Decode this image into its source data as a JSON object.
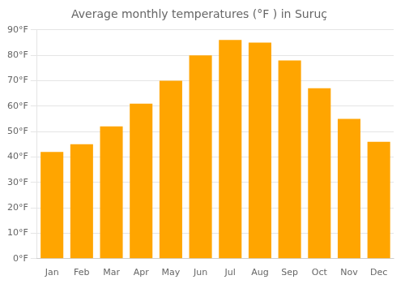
{
  "chart_data": {
    "type": "bar",
    "title": "Average monthly temperatures (°F ) in Suruç",
    "categories": [
      "Jan",
      "Feb",
      "Mar",
      "Apr",
      "May",
      "Jun",
      "Jul",
      "Aug",
      "Sep",
      "Oct",
      "Nov",
      "Dec"
    ],
    "values": [
      42,
      45,
      52,
      61,
      70,
      80,
      86,
      85,
      78,
      67,
      55,
      46
    ],
    "color": "#FFA500",
    "ylim": [
      0,
      90
    ],
    "yticks": [
      {
        "value": 0,
        "label": "0°F"
      },
      {
        "value": 10,
        "label": "10°F"
      },
      {
        "value": 20,
        "label": "20°F"
      },
      {
        "value": 30,
        "label": "30°F"
      },
      {
        "value": 40,
        "label": "40°F"
      },
      {
        "value": 50,
        "label": "50°F"
      },
      {
        "value": 60,
        "label": "60°F"
      },
      {
        "value": 70,
        "label": "70°F"
      },
      {
        "value": 80,
        "label": "80°F"
      },
      {
        "value": 90,
        "label": "90°F"
      }
    ],
    "grid": true
  }
}
